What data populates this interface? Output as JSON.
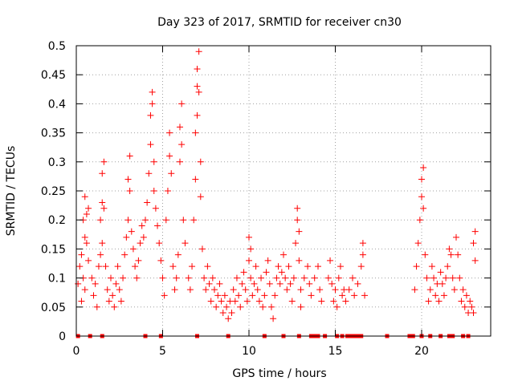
{
  "chart_data": {
    "type": "scatter",
    "title": "Day 323 of 2017, SRMTID for receiver cn30",
    "xlabel": "GPS time / hours",
    "ylabel": "SRMTID / TECUs",
    "xlim": [
      0,
      24
    ],
    "ylim": [
      0,
      0.5
    ],
    "x_ticks": [
      0,
      5,
      10,
      15,
      20
    ],
    "x_tick_labels": [
      "0",
      "5",
      "10",
      "15",
      "20"
    ],
    "y_ticks": [
      0,
      0.05,
      0.1,
      0.15,
      0.2,
      0.25,
      0.3,
      0.35,
      0.4,
      0.45,
      0.5
    ],
    "y_tick_labels": [
      "0",
      "0.05",
      "0.1",
      "0.15",
      "0.2",
      "0.25",
      "0.3",
      "0.35",
      "0.4",
      "0.45",
      "0.5"
    ],
    "grid": true,
    "marker": "+",
    "colors": {
      "points": "#ff0000",
      "grid": "#a0a0a0",
      "axes": "#000000"
    },
    "series": [
      {
        "name": "SRMTID",
        "points": [
          [
            0.1,
            0.09
          ],
          [
            0.2,
            0.12
          ],
          [
            0.3,
            0.14
          ],
          [
            0.4,
            0.2
          ],
          [
            0.5,
            0.24
          ],
          [
            0.5,
            0.17
          ],
          [
            0.6,
            0.21
          ],
          [
            0.7,
            0.22
          ],
          [
            0.3,
            0.06
          ],
          [
            0.4,
            0.1
          ],
          [
            0.6,
            0.16
          ],
          [
            0.7,
            0.13
          ],
          [
            0.5,
            0.08
          ],
          [
            0.9,
            0.1
          ],
          [
            1.0,
            0.07
          ],
          [
            1.1,
            0.09
          ],
          [
            1.2,
            0.05
          ],
          [
            1.3,
            0.12
          ],
          [
            1.4,
            0.14
          ],
          [
            1.4,
            0.2
          ],
          [
            1.5,
            0.23
          ],
          [
            1.5,
            0.28
          ],
          [
            1.6,
            0.3
          ],
          [
            1.6,
            0.22
          ],
          [
            1.5,
            0.16
          ],
          [
            1.7,
            0.12
          ],
          [
            1.8,
            0.08
          ],
          [
            1.9,
            0.06
          ],
          [
            2.0,
            0.1
          ],
          [
            2.1,
            0.07
          ],
          [
            2.2,
            0.05
          ],
          [
            2.3,
            0.09
          ],
          [
            2.4,
            0.12
          ],
          [
            2.5,
            0.08
          ],
          [
            2.6,
            0.06
          ],
          [
            2.7,
            0.1
          ],
          [
            2.8,
            0.14
          ],
          [
            2.9,
            0.17
          ],
          [
            3.0,
            0.2
          ],
          [
            3.0,
            0.27
          ],
          [
            3.1,
            0.31
          ],
          [
            3.1,
            0.25
          ],
          [
            3.2,
            0.18
          ],
          [
            3.3,
            0.15
          ],
          [
            3.4,
            0.12
          ],
          [
            3.5,
            0.1
          ],
          [
            3.6,
            0.13
          ],
          [
            3.7,
            0.16
          ],
          [
            3.8,
            0.19
          ],
          [
            3.9,
            0.17
          ],
          [
            4.0,
            0.2
          ],
          [
            4.1,
            0.23
          ],
          [
            4.2,
            0.28
          ],
          [
            4.3,
            0.33
          ],
          [
            4.3,
            0.38
          ],
          [
            4.4,
            0.42
          ],
          [
            4.4,
            0.4
          ],
          [
            4.5,
            0.3
          ],
          [
            4.5,
            0.25
          ],
          [
            4.6,
            0.22
          ],
          [
            4.7,
            0.19
          ],
          [
            4.8,
            0.16
          ],
          [
            4.9,
            0.13
          ],
          [
            5.0,
            0.1
          ],
          [
            5.1,
            0.07
          ],
          [
            5.2,
            0.2
          ],
          [
            5.3,
            0.25
          ],
          [
            5.4,
            0.31
          ],
          [
            5.4,
            0.35
          ],
          [
            5.5,
            0.28
          ],
          [
            5.6,
            0.12
          ],
          [
            5.7,
            0.08
          ],
          [
            5.8,
            0.1
          ],
          [
            5.9,
            0.14
          ],
          [
            6.0,
            0.3
          ],
          [
            6.0,
            0.36
          ],
          [
            6.1,
            0.4
          ],
          [
            6.1,
            0.33
          ],
          [
            6.2,
            0.2
          ],
          [
            6.3,
            0.16
          ],
          [
            6.5,
            0.1
          ],
          [
            6.6,
            0.08
          ],
          [
            6.7,
            0.12
          ],
          [
            6.8,
            0.2
          ],
          [
            6.9,
            0.27
          ],
          [
            6.9,
            0.35
          ],
          [
            7.0,
            0.38
          ],
          [
            7.0,
            0.43
          ],
          [
            7.0,
            0.46
          ],
          [
            7.1,
            0.49
          ],
          [
            7.1,
            0.42
          ],
          [
            7.2,
            0.3
          ],
          [
            7.2,
            0.24
          ],
          [
            7.3,
            0.15
          ],
          [
            7.4,
            0.1
          ],
          [
            7.5,
            0.08
          ],
          [
            7.6,
            0.12
          ],
          [
            7.7,
            0.09
          ],
          [
            7.8,
            0.06
          ],
          [
            7.9,
            0.1
          ],
          [
            8.0,
            0.08
          ],
          [
            8.1,
            0.05
          ],
          [
            8.2,
            0.07
          ],
          [
            8.3,
            0.09
          ],
          [
            8.4,
            0.06
          ],
          [
            8.5,
            0.04
          ],
          [
            8.6,
            0.07
          ],
          [
            8.7,
            0.05
          ],
          [
            8.8,
            0.03
          ],
          [
            8.9,
            0.06
          ],
          [
            9.0,
            0.04
          ],
          [
            9.1,
            0.08
          ],
          [
            9.2,
            0.06
          ],
          [
            9.3,
            0.1
          ],
          [
            9.4,
            0.07
          ],
          [
            9.5,
            0.05
          ],
          [
            9.6,
            0.09
          ],
          [
            9.7,
            0.11
          ],
          [
            9.8,
            0.08
          ],
          [
            9.9,
            0.06
          ],
          [
            10.0,
            0.13
          ],
          [
            10.0,
            0.17
          ],
          [
            10.1,
            0.15
          ],
          [
            10.1,
            0.1
          ],
          [
            10.2,
            0.07
          ],
          [
            10.3,
            0.09
          ],
          [
            10.4,
            0.12
          ],
          [
            10.5,
            0.08
          ],
          [
            10.6,
            0.06
          ],
          [
            10.7,
            0.1
          ],
          [
            10.8,
            0.05
          ],
          [
            10.9,
            0.07
          ],
          [
            11.0,
            0.11
          ],
          [
            11.1,
            0.13
          ],
          [
            11.2,
            0.09
          ],
          [
            11.3,
            0.05
          ],
          [
            11.4,
            0.03
          ],
          [
            11.5,
            0.07
          ],
          [
            11.6,
            0.1
          ],
          [
            11.7,
            0.12
          ],
          [
            11.8,
            0.09
          ],
          [
            11.9,
            0.11
          ],
          [
            12.0,
            0.14
          ],
          [
            12.1,
            0.1
          ],
          [
            12.2,
            0.08
          ],
          [
            12.3,
            0.12
          ],
          [
            12.4,
            0.09
          ],
          [
            12.5,
            0.06
          ],
          [
            12.6,
            0.1
          ],
          [
            12.7,
            0.16
          ],
          [
            12.8,
            0.2
          ],
          [
            12.8,
            0.22
          ],
          [
            12.9,
            0.18
          ],
          [
            12.9,
            0.13
          ],
          [
            13.0,
            0.08
          ],
          [
            13.0,
            0.05
          ],
          [
            13.2,
            0.1
          ],
          [
            13.4,
            0.12
          ],
          [
            13.5,
            0.09
          ],
          [
            13.6,
            0.07
          ],
          [
            13.8,
            0.1
          ],
          [
            14.0,
            0.12
          ],
          [
            14.1,
            0.08
          ],
          [
            14.2,
            0.06
          ],
          [
            14.6,
            0.1
          ],
          [
            14.7,
            0.13
          ],
          [
            14.8,
            0.09
          ],
          [
            14.9,
            0.06
          ],
          [
            15.0,
            0.08
          ],
          [
            15.1,
            0.05
          ],
          [
            15.2,
            0.1
          ],
          [
            15.3,
            0.12
          ],
          [
            15.4,
            0.07
          ],
          [
            15.5,
            0.08
          ],
          [
            15.6,
            0.06
          ],
          [
            15.8,
            0.08
          ],
          [
            16.0,
            0.1
          ],
          [
            16.1,
            0.07
          ],
          [
            16.3,
            0.09
          ],
          [
            16.5,
            0.12
          ],
          [
            16.6,
            0.16
          ],
          [
            16.6,
            0.14
          ],
          [
            16.7,
            0.07
          ],
          [
            19.6,
            0.08
          ],
          [
            19.7,
            0.12
          ],
          [
            19.8,
            0.16
          ],
          [
            19.9,
            0.2
          ],
          [
            20.0,
            0.24
          ],
          [
            20.0,
            0.27
          ],
          [
            20.1,
            0.29
          ],
          [
            20.1,
            0.22
          ],
          [
            20.2,
            0.14
          ],
          [
            20.3,
            0.1
          ],
          [
            20.4,
            0.06
          ],
          [
            20.5,
            0.08
          ],
          [
            20.6,
            0.12
          ],
          [
            20.7,
            0.1
          ],
          [
            20.8,
            0.07
          ],
          [
            20.9,
            0.09
          ],
          [
            21.0,
            0.06
          ],
          [
            21.1,
            0.11
          ],
          [
            21.2,
            0.09
          ],
          [
            21.3,
            0.07
          ],
          [
            21.4,
            0.1
          ],
          [
            21.5,
            0.12
          ],
          [
            21.6,
            0.15
          ],
          [
            21.7,
            0.14
          ],
          [
            21.8,
            0.1
          ],
          [
            21.9,
            0.08
          ],
          [
            22.0,
            0.17
          ],
          [
            22.1,
            0.14
          ],
          [
            22.2,
            0.1
          ],
          [
            22.3,
            0.06
          ],
          [
            22.4,
            0.08
          ],
          [
            22.5,
            0.05
          ],
          [
            22.6,
            0.07
          ],
          [
            22.7,
            0.04
          ],
          [
            22.8,
            0.06
          ],
          [
            22.9,
            0.05
          ],
          [
            23.0,
            0.04
          ],
          [
            23.0,
            0.16
          ],
          [
            23.1,
            0.18
          ],
          [
            23.1,
            0.13
          ]
        ]
      },
      {
        "name": "zero-level markers",
        "points": [
          [
            0.1,
            0
          ],
          [
            0.8,
            0
          ],
          [
            1.5,
            0
          ],
          [
            4.0,
            0
          ],
          [
            4.9,
            0
          ],
          [
            7.0,
            0
          ],
          [
            8.8,
            0
          ],
          [
            10.9,
            0
          ],
          [
            12.0,
            0
          ],
          [
            12.9,
            0
          ],
          [
            13.6,
            0
          ],
          [
            13.8,
            0
          ],
          [
            14.0,
            0
          ],
          [
            14.4,
            0
          ],
          [
            15.1,
            0
          ],
          [
            15.4,
            0
          ],
          [
            15.7,
            0
          ],
          [
            15.9,
            0
          ],
          [
            16.1,
            0
          ],
          [
            16.3,
            0
          ],
          [
            16.5,
            0
          ],
          [
            18.0,
            0
          ],
          [
            19.3,
            0
          ],
          [
            19.5,
            0
          ],
          [
            20.0,
            0
          ],
          [
            20.5,
            0
          ],
          [
            21.1,
            0
          ],
          [
            21.6,
            0
          ],
          [
            21.8,
            0
          ],
          [
            22.4,
            0
          ],
          [
            22.7,
            0
          ]
        ]
      }
    ]
  }
}
